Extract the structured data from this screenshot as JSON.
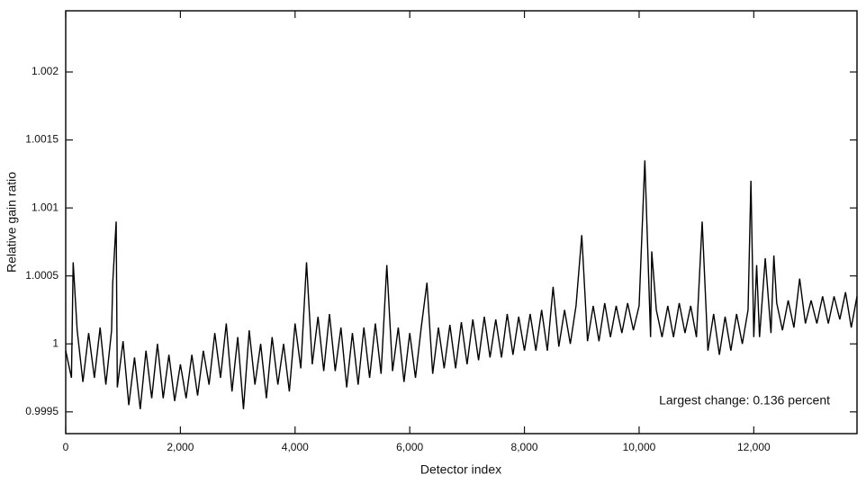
{
  "chart_data": {
    "type": "line",
    "x_label": "Detector index",
    "y_label": "Relative gain ratio",
    "annotation": "Largest change: 0.136 percent",
    "color": "#000000",
    "xlim": [
      0,
      13800
    ],
    "ylim": [
      0.99934,
      1.00245
    ],
    "xticks": [
      0,
      {
        "value": 2000,
        "label": "2,000"
      },
      {
        "value": 4000,
        "label": "4,000"
      },
      {
        "value": 6000,
        "label": "6,000"
      },
      {
        "value": 8000,
        "label": "8,000"
      },
      {
        "value": 10000,
        "label": "10,000"
      },
      {
        "value": 12000,
        "label": "12,000"
      }
    ],
    "yticks": [
      0.9995,
      1,
      1.0005,
      1.001,
      1.0015,
      1.002
    ],
    "x": [
      0,
      100,
      130,
      200,
      300,
      400,
      500,
      600,
      700,
      800,
      820,
      880,
      900,
      1000,
      1100,
      1200,
      1300,
      1400,
      1500,
      1600,
      1700,
      1800,
      1900,
      2000,
      2100,
      2200,
      2300,
      2400,
      2500,
      2600,
      2700,
      2800,
      2900,
      3000,
      3100,
      3200,
      3300,
      3400,
      3500,
      3600,
      3700,
      3800,
      3900,
      4000,
      4100,
      4200,
      4300,
      4400,
      4500,
      4600,
      4700,
      4800,
      4900,
      5000,
      5100,
      5200,
      5300,
      5400,
      5500,
      5600,
      5700,
      5800,
      5900,
      6000,
      6100,
      6200,
      6300,
      6400,
      6500,
      6600,
      6700,
      6800,
      6900,
      7000,
      7100,
      7200,
      7300,
      7400,
      7500,
      7600,
      7700,
      7800,
      7900,
      8000,
      8100,
      8200,
      8300,
      8400,
      8500,
      8600,
      8700,
      8800,
      8900,
      9000,
      9100,
      9200,
      9300,
      9400,
      9500,
      9600,
      9700,
      9800,
      9900,
      10000,
      10100,
      10200,
      10220,
      10300,
      10400,
      10500,
      10600,
      10700,
      10800,
      10900,
      11000,
      11100,
      11200,
      11300,
      11400,
      11500,
      11600,
      11700,
      11800,
      11900,
      11950,
      12000,
      12050,
      12100,
      12200,
      12300,
      12350,
      12400,
      12500,
      12600,
      12700,
      12800,
      12900,
      13000,
      13100,
      13200,
      13300,
      13400,
      13500,
      13600,
      13700,
      13800
    ],
    "values": [
      0.99995,
      0.99975,
      1.0006,
      1.0001,
      0.99972,
      1.00008,
      0.99975,
      1.00012,
      0.9997,
      1.0001,
      1.00045,
      1.0009,
      0.99968,
      1.00002,
      0.99955,
      0.9999,
      0.99952,
      0.99995,
      0.9996,
      1,
      0.9996,
      0.99992,
      0.99958,
      0.99985,
      0.9996,
      0.99992,
      0.99962,
      0.99995,
      0.9997,
      1.00008,
      0.99975,
      1.00015,
      0.99965,
      1.00005,
      0.99952,
      1.0001,
      0.9997,
      1,
      0.9996,
      1.00005,
      0.9997,
      1,
      0.99965,
      1.00015,
      0.99982,
      1.0006,
      0.99985,
      1.0002,
      0.9998,
      1.00022,
      0.9998,
      1.00012,
      0.99968,
      1.00008,
      0.9997,
      1.00012,
      0.99975,
      1.00015,
      0.99978,
      1.00058,
      0.9998,
      1.00012,
      0.99972,
      1.00008,
      0.99975,
      1.00012,
      1.00045,
      0.99978,
      1.00012,
      0.99982,
      1.00014,
      0.99982,
      1.00016,
      0.99985,
      1.00018,
      0.99988,
      1.0002,
      0.9999,
      1.00018,
      0.9999,
      1.00022,
      0.99992,
      1.0002,
      0.99995,
      1.00022,
      0.99995,
      1.00025,
      0.99995,
      1.00042,
      0.99998,
      1.00025,
      1,
      1.00028,
      1.0008,
      1.00002,
      1.00028,
      1.00002,
      1.0003,
      1.00005,
      1.00028,
      1.00008,
      1.0003,
      1.0001,
      1.00028,
      1.00135,
      1.00005,
      1.00068,
      1.00025,
      1.00005,
      1.00028,
      1.00005,
      1.0003,
      1.00008,
      1.00028,
      1.00005,
      1.0009,
      0.99995,
      1.00022,
      0.99992,
      1.0002,
      0.99995,
      1.00022,
      1,
      1.00025,
      1.0012,
      1.00005,
      1.00058,
      1.00005,
      1.00063,
      1.00008,
      1.00065,
      1.0003,
      1.0001,
      1.00032,
      1.00012,
      1.00048,
      1.00015,
      1.00032,
      1.00015,
      1.00035,
      1.00015,
      1.00035,
      1.00018,
      1.00038,
      1.00012,
      1.00035
    ]
  }
}
